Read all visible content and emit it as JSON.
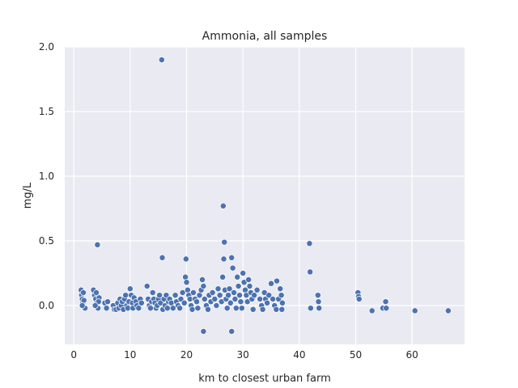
{
  "chart_data": {
    "type": "scatter",
    "title": "Ammonia, all samples",
    "xlabel": "km to closest urban farm",
    "ylabel": "mg/L",
    "xlim": [
      -1.6,
      69.3
    ],
    "ylim": [
      -0.3,
      2.0
    ],
    "xticks": [
      0,
      10,
      20,
      30,
      40,
      50,
      60
    ],
    "yticks": [
      0.0,
      0.5,
      1.0,
      1.5,
      2.0
    ],
    "xtick_labels": [
      "0",
      "10",
      "20",
      "30",
      "40",
      "50",
      "60"
    ],
    "ytick_labels": [
      "0.0",
      "0.5",
      "1.0",
      "1.5",
      "2.0"
    ],
    "grid": true,
    "background": "#eaeaf2",
    "grid_color": "#ffffff",
    "point_color": "#4c72b0",
    "points": [
      [
        1.3,
        0.12
      ],
      [
        1.4,
        0.08
      ],
      [
        1.5,
        0.05
      ],
      [
        1.6,
        0.02
      ],
      [
        1.7,
        0.1
      ],
      [
        1.8,
        0.04
      ],
      [
        2.0,
        -0.02
      ],
      [
        1.5,
        0.0
      ],
      [
        3.5,
        0.12
      ],
      [
        3.7,
        0.08
      ],
      [
        3.9,
        0.05
      ],
      [
        4.0,
        0.1
      ],
      [
        4.1,
        0.02
      ],
      [
        4.2,
        0.47
      ],
      [
        4.3,
        -0.02
      ],
      [
        4.5,
        0.06
      ],
      [
        4.4,
        0.03
      ],
      [
        3.8,
        0.0
      ],
      [
        5.5,
        0.02
      ],
      [
        5.8,
        -0.02
      ],
      [
        6.0,
        0.03
      ],
      [
        7.0,
        0.0
      ],
      [
        7.2,
        -0.03
      ],
      [
        7.5,
        -0.03
      ],
      [
        7.8,
        0.02
      ],
      [
        8.0,
        -0.02
      ],
      [
        8.2,
        0.05
      ],
      [
        8.4,
        0.0
      ],
      [
        8.6,
        0.03
      ],
      [
        8.8,
        -0.03
      ],
      [
        9.0,
        0.05
      ],
      [
        9.2,
        0.08
      ],
      [
        9.4,
        0.0
      ],
      [
        9.6,
        -0.02
      ],
      [
        9.8,
        0.03
      ],
      [
        10.0,
        0.13
      ],
      [
        10.2,
        0.08
      ],
      [
        10.4,
        0.02
      ],
      [
        10.5,
        -0.02
      ],
      [
        10.7,
        0.06
      ],
      [
        11.0,
        0.03
      ],
      [
        11.2,
        0.0
      ],
      [
        11.5,
        -0.02
      ],
      [
        11.8,
        0.05
      ],
      [
        12.0,
        0.02
      ],
      [
        13.0,
        0.15
      ],
      [
        13.2,
        0.05
      ],
      [
        13.4,
        0.0
      ],
      [
        13.6,
        -0.02
      ],
      [
        13.8,
        0.03
      ],
      [
        14.0,
        0.1
      ],
      [
        14.2,
        0.05
      ],
      [
        14.4,
        0.02
      ],
      [
        14.6,
        -0.02
      ],
      [
        14.8,
        0.0
      ],
      [
        15.0,
        0.05
      ],
      [
        15.2,
        0.08
      ],
      [
        15.4,
        0.02
      ],
      [
        15.6,
        1.9
      ],
      [
        15.7,
        0.37
      ],
      [
        15.8,
        -0.03
      ],
      [
        16.0,
        0.05
      ],
      [
        16.2,
        0.0
      ],
      [
        16.4,
        0.08
      ],
      [
        16.6,
        -0.02
      ],
      [
        16.8,
        0.03
      ],
      [
        17.0,
        0.05
      ],
      [
        17.3,
        0.02
      ],
      [
        17.6,
        -0.02
      ],
      [
        18.0,
        0.08
      ],
      [
        18.2,
        0.03
      ],
      [
        18.5,
        0.0
      ],
      [
        18.8,
        -0.02
      ],
      [
        19.0,
        0.05
      ],
      [
        19.3,
        0.1
      ],
      [
        19.6,
        0.02
      ],
      [
        19.8,
        0.22
      ],
      [
        19.9,
        0.36
      ],
      [
        20.0,
        0.18
      ],
      [
        20.2,
        0.12
      ],
      [
        20.4,
        0.08
      ],
      [
        20.6,
        0.05
      ],
      [
        20.8,
        0.0
      ],
      [
        21.0,
        -0.03
      ],
      [
        21.2,
        0.1
      ],
      [
        21.5,
        0.05
      ],
      [
        21.8,
        0.03
      ],
      [
        22.0,
        -0.02
      ],
      [
        22.3,
        0.08
      ],
      [
        22.6,
        0.12
      ],
      [
        22.8,
        0.2
      ],
      [
        23.0,
        0.15
      ],
      [
        23.0,
        -0.2
      ],
      [
        23.2,
        0.05
      ],
      [
        23.5,
        0.0
      ],
      [
        23.8,
        -0.03
      ],
      [
        24.0,
        0.08
      ],
      [
        24.3,
        0.03
      ],
      [
        24.6,
        0.1
      ],
      [
        25.0,
        0.05
      ],
      [
        25.3,
        0.0
      ],
      [
        25.6,
        0.13
      ],
      [
        25.9,
        0.08
      ],
      [
        26.2,
        0.03
      ],
      [
        26.4,
        0.22
      ],
      [
        26.5,
        0.77
      ],
      [
        26.6,
        0.36
      ],
      [
        26.7,
        0.49
      ],
      [
        26.8,
        0.12
      ],
      [
        27.0,
        0.05
      ],
      [
        27.2,
        -0.02
      ],
      [
        27.4,
        0.08
      ],
      [
        27.6,
        0.13
      ],
      [
        27.8,
        0.02
      ],
      [
        28.0,
        0.37
      ],
      [
        28.0,
        -0.2
      ],
      [
        28.2,
        0.29
      ],
      [
        28.4,
        0.1
      ],
      [
        28.6,
        0.05
      ],
      [
        28.8,
        -0.02
      ],
      [
        29.0,
        0.22
      ],
      [
        29.2,
        0.15
      ],
      [
        29.4,
        0.08
      ],
      [
        29.6,
        0.03
      ],
      [
        29.8,
        -0.02
      ],
      [
        30.0,
        0.25
      ],
      [
        30.2,
        0.18
      ],
      [
        30.4,
        0.12
      ],
      [
        30.6,
        0.08
      ],
      [
        30.8,
        0.03
      ],
      [
        31.0,
        0.2
      ],
      [
        31.2,
        0.15
      ],
      [
        31.4,
        0.1
      ],
      [
        31.6,
        0.05
      ],
      [
        31.8,
        -0.03
      ],
      [
        32.0,
        0.08
      ],
      [
        32.5,
        0.12
      ],
      [
        33.0,
        0.05
      ],
      [
        33.3,
        0.0
      ],
      [
        33.5,
        -0.03
      ],
      [
        33.8,
        0.1
      ],
      [
        34.0,
        0.05
      ],
      [
        34.3,
        0.02
      ],
      [
        34.6,
        0.08
      ],
      [
        35.0,
        0.17
      ],
      [
        35.3,
        0.05
      ],
      [
        35.6,
        0.0
      ],
      [
        35.9,
        -0.03
      ],
      [
        36.0,
        0.19
      ],
      [
        36.3,
        0.05
      ],
      [
        36.6,
        0.13
      ],
      [
        36.8,
        0.08
      ],
      [
        36.9,
        -0.03
      ],
      [
        37.0,
        0.02
      ],
      [
        41.8,
        0.48
      ],
      [
        41.9,
        0.26
      ],
      [
        42.0,
        -0.02
      ],
      [
        43.3,
        0.08
      ],
      [
        43.4,
        0.03
      ],
      [
        43.5,
        -0.02
      ],
      [
        50.4,
        0.1
      ],
      [
        50.5,
        0.07
      ],
      [
        50.6,
        0.05
      ],
      [
        52.9,
        -0.04
      ],
      [
        54.8,
        -0.02
      ],
      [
        55.3,
        0.03
      ],
      [
        55.4,
        -0.02
      ],
      [
        60.5,
        -0.04
      ],
      [
        66.4,
        -0.04
      ]
    ]
  }
}
